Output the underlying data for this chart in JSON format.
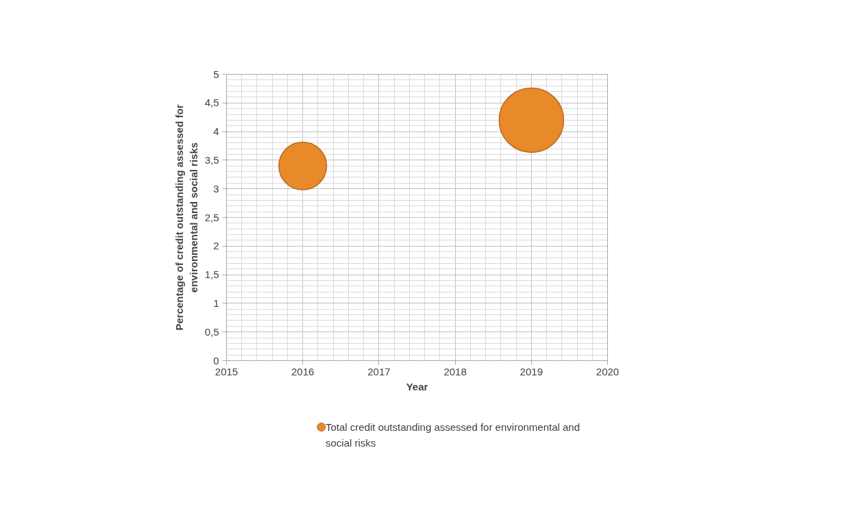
{
  "chart_data": {
    "type": "bubble",
    "xlabel": "Year",
    "ylabel": "Percentage of credit outstanding assessed for environmental and social risks",
    "x": [
      2016,
      2019
    ],
    "series": [
      {
        "name": "Total credit outstanding assessed for environmental and social risks",
        "color": "#e8892a",
        "values": [
          3.4,
          4.2
        ],
        "sizes": [
          0.55,
          1
        ]
      }
    ],
    "xlim": [
      2015,
      2020
    ],
    "xticks": [
      2015,
      2016,
      2017,
      2018,
      2019,
      2020
    ],
    "ylim": [
      0,
      5
    ],
    "yticks": [
      0,
      {
        "value": 0.5,
        "label": "0,5"
      },
      1,
      {
        "value": 1.5,
        "label": "1,5"
      },
      2,
      {
        "value": 2.5,
        "label": "2,5"
      },
      3,
      {
        "value": 3.5,
        "label": "3,5"
      },
      4,
      {
        "value": 4.5,
        "label": "4,5"
      },
      5
    ],
    "grid": true,
    "legend": "bottom"
  }
}
